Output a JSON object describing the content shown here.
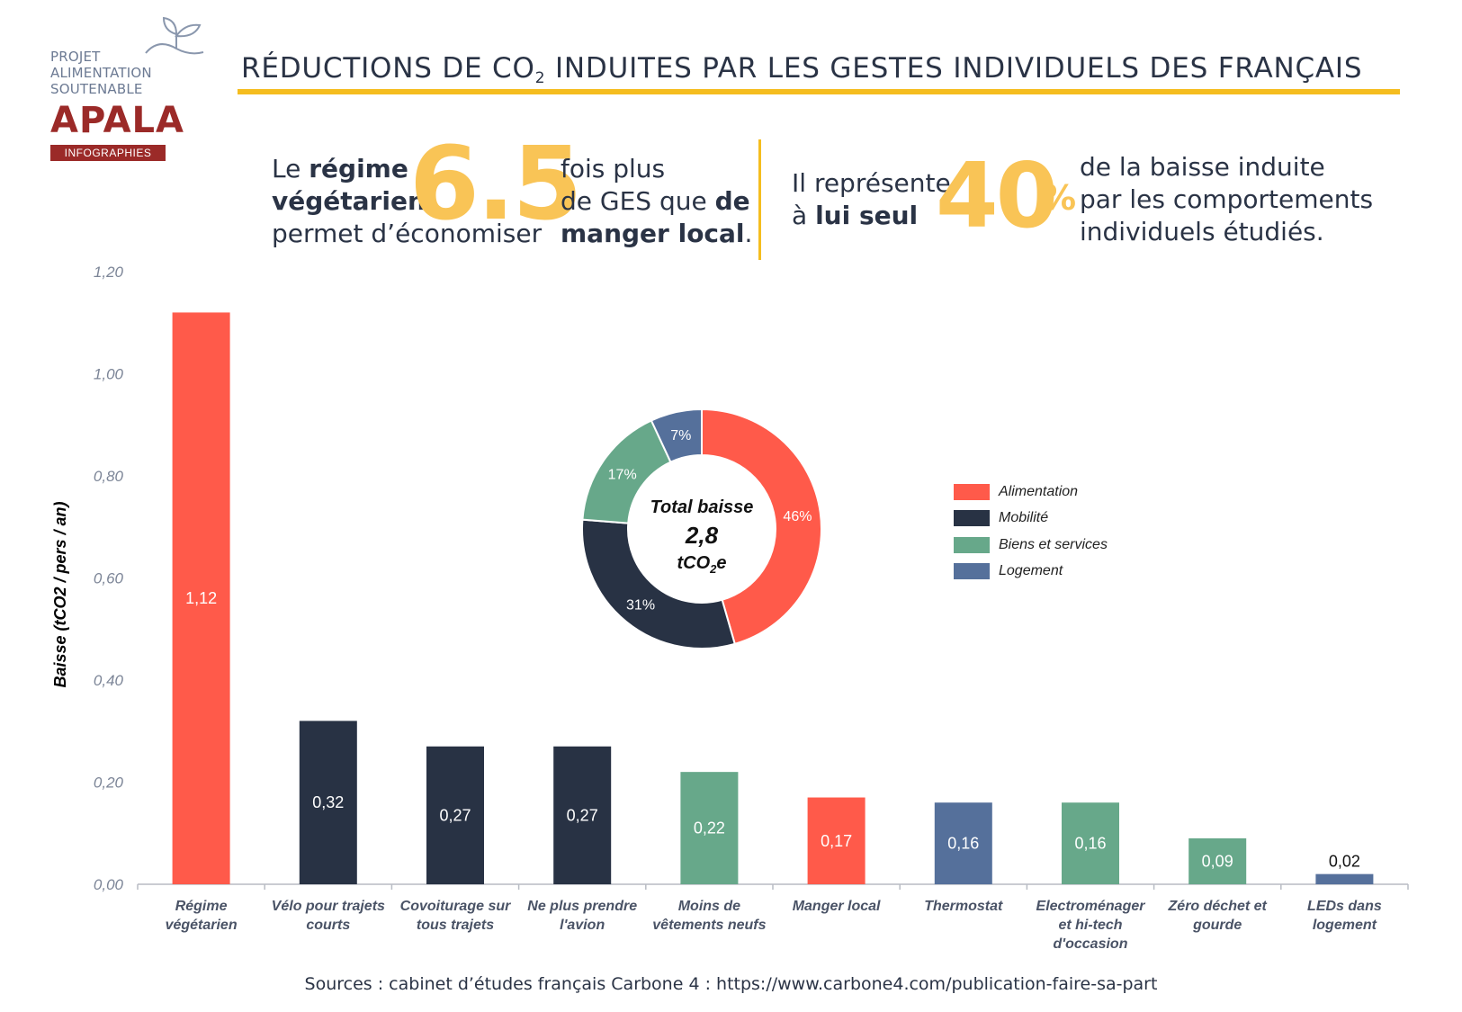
{
  "logo": {
    "line1": "PROJET",
    "line2": "ALIMENTATION",
    "line3": "SOUTENABLE",
    "brand": "APALA",
    "subtitle": "INFOGRAPHIES",
    "icon": "plant-icon"
  },
  "header": {
    "title_part1": "RÉDUCTIONS DE CO",
    "title_sub": "2",
    "title_part2": " INDUITES PAR LES GESTES INDIVIDUELS DES FRANÇAIS"
  },
  "stat1": {
    "l1a": "Le ",
    "l1b": "régime",
    "l2": "végétarien",
    "l3": "permet d’économiser",
    "big": "6.5",
    "r1": "fois plus",
    "r2a": "de GES que ",
    "r2b": "de",
    "r3a": "manger local",
    "r3b": "."
  },
  "stat2": {
    "l1": "Il représente",
    "l2a": "à ",
    "l2b": "lui seul",
    "big": "40",
    "pct": "%",
    "r1": "de la baisse induite",
    "r2": "par les comportements",
    "r3": "individuels étudiés."
  },
  "chart_data": [
    {
      "type": "bar",
      "ylabel": "Baisse (tCO2 / pers / an)",
      "ylim": [
        0,
        1.2
      ],
      "yticks": [
        "0,00",
        "0,20",
        "0,40",
        "0,60",
        "0,80",
        "1,00",
        "1,20"
      ],
      "categories": [
        [
          "Régime",
          "végétarien"
        ],
        [
          "Vélo pour trajets",
          "courts"
        ],
        [
          "Covoiturage sur",
          "tous trajets"
        ],
        [
          "Ne plus prendre",
          "l'avion"
        ],
        [
          "Moins de",
          "vêtements neufs"
        ],
        [
          "Manger local"
        ],
        [
          "Thermostat"
        ],
        [
          "Electroménager",
          "et hi-tech",
          "d'occasion"
        ],
        [
          "Zéro déchet et",
          "gourde"
        ],
        [
          "LEDs dans",
          "logement"
        ]
      ],
      "values": [
        1.12,
        0.32,
        0.27,
        0.27,
        0.22,
        0.17,
        0.16,
        0.16,
        0.09,
        0.02
      ],
      "value_labels": [
        "1,12",
        "0,32",
        "0,27",
        "0,27",
        "0,22",
        "0,17",
        "0,16",
        "0,16",
        "0,09",
        "0,02"
      ],
      "bar_groups": [
        "Alimentation",
        "Mobilité",
        "Mobilité",
        "Mobilité",
        "Biens et services",
        "Alimentation",
        "Logement",
        "Biens et services",
        "Biens et services",
        "Logement"
      ],
      "grid": false
    },
    {
      "type": "pie",
      "donut": true,
      "center_line1": "Total baisse",
      "center_line2": "2,8",
      "center_line3a": "tCO",
      "center_line3b": "2",
      "center_line3c": "e",
      "slices": [
        {
          "label": "Alimentation",
          "value": 46,
          "text": "46%"
        },
        {
          "label": "Mobilité",
          "value": 31,
          "text": "31%"
        },
        {
          "label": "Biens et services",
          "value": 17,
          "text": "17%"
        },
        {
          "label": "Logement",
          "value": 7,
          "text": "7%"
        }
      ]
    }
  ],
  "legend": {
    "placement": "right of donut",
    "items": [
      {
        "label": "Alimentation",
        "color": "#ff5a4a"
      },
      {
        "label": "Mobilité",
        "color": "#283244"
      },
      {
        "label": "Biens et services",
        "color": "#67a88a"
      },
      {
        "label": "Logement",
        "color": "#55709b"
      }
    ]
  },
  "colors": {
    "Alimentation": "#ff5a4a",
    "Mobilité": "#283244",
    "Biens et services": "#67a88a",
    "Logement": "#55709b",
    "accent": "#f5bd1f",
    "big_number": "#f9c456"
  },
  "source": "Sources : cabinet d’études français Carbone 4 : https://www.carbone4.com/publication-faire-sa-part"
}
